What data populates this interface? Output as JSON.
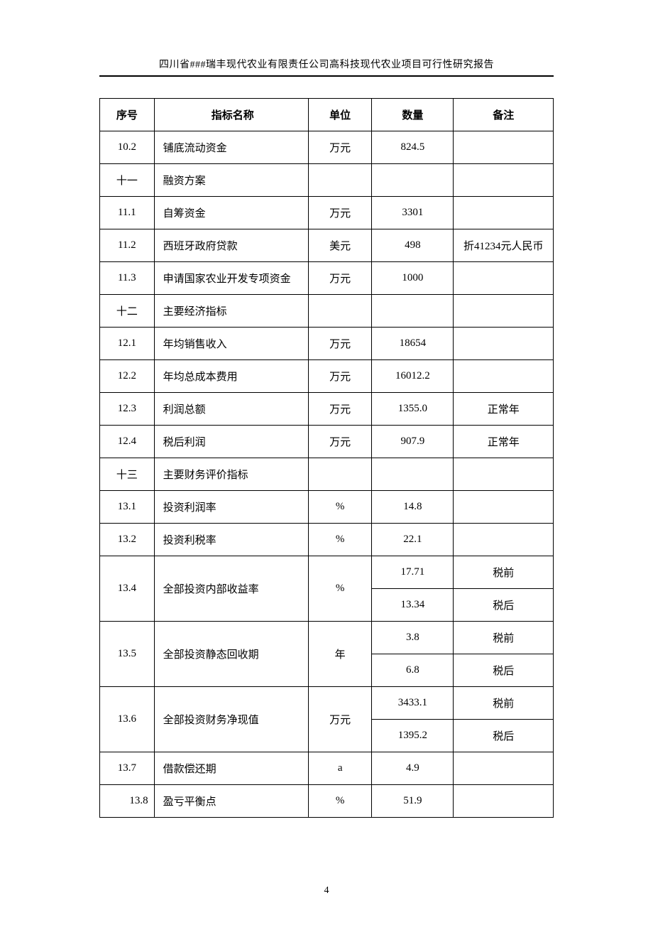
{
  "header_title": "四川省###瑞丰现代农业有限责任公司高科技现代农业项目可行性研究报告",
  "page_number": "4",
  "table": {
    "columns": {
      "seq": "序号",
      "name": "指标名称",
      "unit": "单位",
      "qty": "数量",
      "note": "备注"
    },
    "rows": [
      {
        "seq": "10.2",
        "name": "铺底流动资金",
        "unit": "万元",
        "qty": "824.5",
        "note": ""
      },
      {
        "seq": "十一",
        "name": "融资方案",
        "unit": "",
        "qty": "",
        "note": ""
      },
      {
        "seq": "11.1",
        "name": "自筹资金",
        "unit": "万元",
        "qty": "3301",
        "note": ""
      },
      {
        "seq": "11.2",
        "name": "西班牙政府贷款",
        "unit": "美元",
        "qty": "498",
        "note": "折41234元人民币"
      },
      {
        "seq": "11.3",
        "name": "申请国家农业开发专项资金",
        "unit": "万元",
        "qty": "1000",
        "note": ""
      },
      {
        "seq": "十二",
        "name": "主要经济指标",
        "unit": "",
        "qty": "",
        "note": ""
      },
      {
        "seq": "12.1",
        "name": "年均销售收入",
        "unit": "万元",
        "qty": "18654",
        "note": ""
      },
      {
        "seq": "12.2",
        "name": "年均总成本费用",
        "unit": "万元",
        "qty": "16012.2",
        "note": ""
      },
      {
        "seq": "12.3",
        "name": "利润总额",
        "unit": "万元",
        "qty": "1355.0",
        "note": "正常年"
      },
      {
        "seq": "12.4",
        "name": "税后利润",
        "unit": "万元",
        "qty": "907.9",
        "note": "正常年"
      },
      {
        "seq": "十三",
        "name": "主要财务评价指标",
        "unit": "",
        "qty": "",
        "note": ""
      },
      {
        "seq": "13.1",
        "name": "投资利润率",
        "unit": "%",
        "qty": "14.8",
        "note": ""
      },
      {
        "seq": "13.2",
        "name": "投资利税率",
        "unit": "%",
        "qty": "22.1",
        "note": ""
      },
      {
        "seq": "13.4",
        "name": "全部投资内部收益率",
        "unit": "%",
        "qty1": "17.71",
        "note1": "税前",
        "qty2": "13.34",
        "note2": "税后",
        "rowspan": 2
      },
      {
        "seq": "13.5",
        "name": "全部投资静态回收期",
        "unit": "年",
        "qty1": "3.8",
        "note1": "税前",
        "qty2": "6.8",
        "note2": "税后",
        "rowspan": 2
      },
      {
        "seq": "13.6",
        "name": "全部投资财务净现值",
        "unit": "万元",
        "qty1": "3433.1",
        "note1": "税前",
        "qty2": "1395.2",
        "note2": "税后",
        "rowspan": 2
      },
      {
        "seq": "13.7",
        "name": "借款偿还期",
        "unit": "a",
        "qty": "4.9",
        "note": ""
      },
      {
        "seq": "13.8",
        "name": "盈亏平衡点",
        "unit": "%",
        "qty": "51.9",
        "note": "",
        "indent": true
      }
    ]
  }
}
